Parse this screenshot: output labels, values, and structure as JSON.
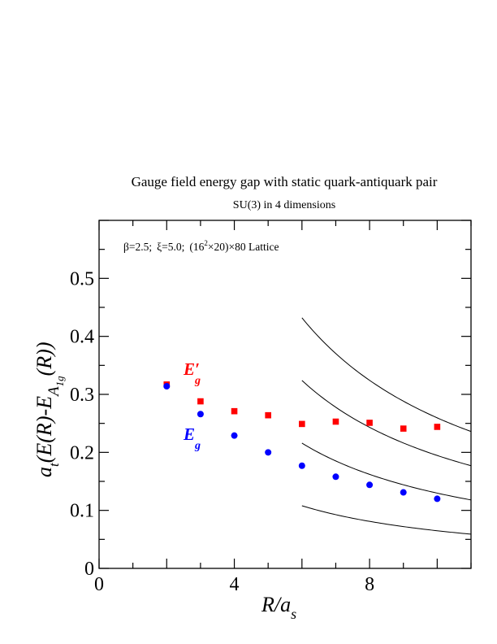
{
  "chart_data": {
    "type": "scatter",
    "title": "Gauge field energy gap with static quark-antiquark pair",
    "subtitle": "SU(3) in 4 dimensions",
    "annotation": {
      "beta": "β=2.5;",
      "xi": "ξ=5.0;",
      "lattice_prefix": "(16",
      "lattice_exp": "2",
      "lattice_suffix": "×20)×80 Lattice"
    },
    "xlabel": {
      "main": "R/a",
      "sub": "s"
    },
    "ylabel": {
      "a": "a",
      "t": "t",
      "body": "(E(R)-E",
      "A": "A",
      "sub": "1g",
      "tail": "(R))"
    },
    "xlim": [
      0,
      11
    ],
    "ylim": [
      0,
      0.6
    ],
    "xticks": [
      0,
      4,
      8
    ],
    "xtick_labels": [
      "0",
      "4",
      "8"
    ],
    "yticks": [
      0,
      0.1,
      0.2,
      0.3,
      0.4,
      0.5
    ],
    "ytick_labels": [
      "0",
      "0.1",
      "0.2",
      "0.3",
      "0.4",
      "0.5"
    ],
    "series": [
      {
        "label_main": "E",
        "label_sub": "g",
        "label_prime": "′",
        "color": "#ff0000",
        "marker": "square",
        "x": [
          2,
          3,
          4,
          5,
          6,
          7,
          8,
          9,
          10
        ],
        "y": [
          0.317,
          0.288,
          0.271,
          0.264,
          0.249,
          0.253,
          0.251,
          0.241,
          0.244
        ]
      },
      {
        "label_main": "E",
        "label_sub": "g",
        "label_prime": "",
        "color": "#0000ff",
        "marker": "circle",
        "x": [
          2,
          3,
          4,
          5,
          6,
          7,
          8,
          9,
          10
        ],
        "y": [
          0.314,
          0.266,
          0.229,
          0.2,
          0.177,
          0.158,
          0.144,
          0.131,
          0.12
        ]
      }
    ],
    "curves": [
      {
        "color": "#000000",
        "x_start": 6,
        "x_end": 11,
        "y_at_6": 0.432,
        "y_at_11": 0.236
      },
      {
        "color": "#000000",
        "x_start": 6,
        "x_end": 11,
        "y_at_6": 0.324,
        "y_at_11": 0.177
      },
      {
        "color": "#000000",
        "x_start": 6,
        "x_end": 11,
        "y_at_6": 0.216,
        "y_at_11": 0.118
      },
      {
        "color": "#000000",
        "x_start": 6,
        "x_end": 11,
        "y_at_6": 0.108,
        "y_at_11": 0.059
      }
    ]
  }
}
